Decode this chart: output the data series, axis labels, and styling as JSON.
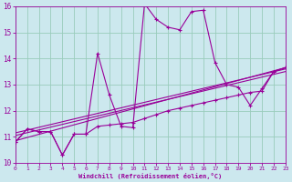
{
  "xlabel": "Windchill (Refroidissement éolien,°C)",
  "bg_color": "#cce8ee",
  "line_color": "#990099",
  "grid_color": "#99ccbb",
  "xmin": 0,
  "xmax": 23,
  "ymin": 10,
  "ymax": 16,
  "series1_x": [
    0,
    1,
    2,
    3,
    4,
    5,
    6,
    7,
    8,
    9,
    10,
    11,
    12,
    13,
    14,
    15,
    16,
    17,
    18,
    19,
    20,
    21,
    22,
    23
  ],
  "series1_y": [
    10.8,
    11.3,
    11.2,
    11.2,
    10.3,
    11.1,
    11.1,
    14.2,
    12.6,
    11.4,
    11.35,
    16.1,
    15.5,
    15.2,
    15.1,
    15.8,
    15.85,
    13.85,
    13.0,
    12.9,
    12.2,
    12.85,
    13.5,
    13.65
  ],
  "series2_x": [
    0,
    1,
    2,
    3,
    4,
    5,
    6,
    7,
    8,
    9,
    10,
    11,
    12,
    13,
    14,
    15,
    16,
    17,
    18,
    19,
    20,
    21,
    22,
    23
  ],
  "series2_y": [
    10.8,
    11.3,
    11.2,
    11.2,
    10.3,
    11.1,
    11.1,
    11.4,
    11.45,
    11.5,
    11.55,
    11.7,
    11.85,
    12.0,
    12.1,
    12.2,
    12.3,
    12.4,
    12.5,
    12.6,
    12.7,
    12.75,
    13.5,
    13.65
  ],
  "trend1_x": [
    0,
    23
  ],
  "trend1_y": [
    10.85,
    13.65
  ],
  "trend2_x": [
    0,
    23
  ],
  "trend2_y": [
    11.05,
    13.5
  ],
  "trend3_x": [
    0,
    23
  ],
  "trend3_y": [
    11.15,
    13.6
  ]
}
